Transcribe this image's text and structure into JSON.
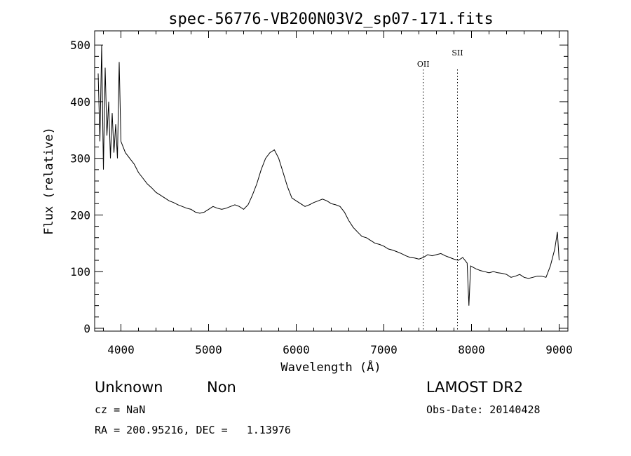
{
  "chart_data": {
    "type": "line",
    "title": "spec-56776-VB200N03V2_sp07-171.fits",
    "xlabel": "Wavelength (Å)",
    "ylabel": "Flux (relative)",
    "xlim": [
      3700,
      9100
    ],
    "ylim": [
      -5,
      525
    ],
    "xticks": [
      4000,
      5000,
      6000,
      7000,
      8000,
      9000
    ],
    "yticks": [
      0,
      100,
      200,
      300,
      400,
      500
    ],
    "grid": false,
    "legend": "none",
    "line_color": "#000000",
    "series": [
      {
        "x": [
          3740,
          3760,
          3780,
          3800,
          3820,
          3840,
          3860,
          3880,
          3900,
          3920,
          3940,
          3960,
          3980,
          4000,
          4050,
          4100,
          4150,
          4200,
          4250,
          4300,
          4350,
          4400,
          4450,
          4500,
          4550,
          4600,
          4650,
          4700,
          4750,
          4800,
          4850,
          4900,
          4950,
          5000,
          5050,
          5100,
          5150,
          5200,
          5250,
          5300,
          5350,
          5400,
          5450,
          5500,
          5550,
          5600,
          5650,
          5700,
          5750,
          5800,
          5850,
          5900,
          5950,
          6000,
          6050,
          6100,
          6150,
          6200,
          6250,
          6300,
          6350,
          6400,
          6450,
          6500,
          6550,
          6600,
          6650,
          6700,
          6750,
          6800,
          6850,
          6900,
          6950,
          7000,
          7050,
          7100,
          7150,
          7200,
          7250,
          7300,
          7350,
          7400,
          7450,
          7500,
          7550,
          7600,
          7650,
          7700,
          7750,
          7800,
          7850,
          7900,
          7950,
          7970,
          7990,
          8050,
          8100,
          8150,
          8200,
          8250,
          8300,
          8350,
          8400,
          8450,
          8500,
          8550,
          8600,
          8650,
          8700,
          8750,
          8800,
          8850,
          8900,
          8950,
          8980,
          9000
        ],
        "y": [
          450,
          330,
          500,
          280,
          460,
          340,
          400,
          300,
          380,
          310,
          360,
          300,
          470,
          330,
          310,
          300,
          290,
          275,
          265,
          255,
          248,
          240,
          235,
          230,
          225,
          222,
          218,
          215,
          212,
          210,
          205,
          203,
          205,
          210,
          215,
          212,
          210,
          212,
          215,
          218,
          215,
          210,
          218,
          235,
          255,
          280,
          300,
          310,
          315,
          300,
          275,
          250,
          230,
          225,
          220,
          215,
          218,
          222,
          225,
          228,
          225,
          220,
          218,
          215,
          205,
          190,
          178,
          170,
          162,
          160,
          155,
          150,
          148,
          145,
          140,
          138,
          135,
          132,
          128,
          125,
          124,
          122,
          125,
          130,
          128,
          130,
          132,
          128,
          125,
          122,
          120,
          125,
          115,
          40,
          110,
          105,
          102,
          100,
          98,
          100,
          98,
          97,
          95,
          90,
          92,
          95,
          90,
          88,
          90,
          92,
          92,
          90,
          110,
          140,
          170,
          120
        ]
      }
    ],
    "annotations": [
      {
        "text": "OII",
        "x": 7450
      },
      {
        "text": "SII",
        "x": 7840
      }
    ],
    "info": {
      "class": "Unknown",
      "subclass": "Non",
      "survey": "LAMOST DR2",
      "cz": "cz = NaN",
      "obs_date": "Obs-Date: 20140428",
      "coords": "RA = 200.95216, DEC =   1.13976"
    }
  }
}
